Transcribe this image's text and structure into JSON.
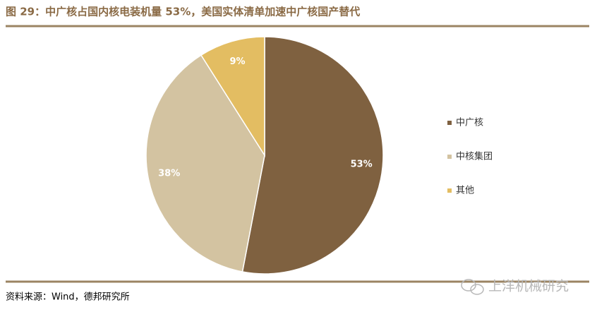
{
  "chart_data": {
    "type": "pie",
    "title": "图 29：中广核占国内核电装机量 53%，美国实体清单加速中广核国产替代",
    "categories": [
      "中广核",
      "中核集团",
      "其他"
    ],
    "values": [
      53,
      38,
      9
    ],
    "value_labels": [
      "53%",
      "38%",
      "9%"
    ],
    "colors": [
      "#7f6140",
      "#d3c3a1",
      "#e3bd62"
    ],
    "legend": "right",
    "source": "资料来源：Wind，德邦研究所",
    "watermark": "上洋机械研究"
  }
}
